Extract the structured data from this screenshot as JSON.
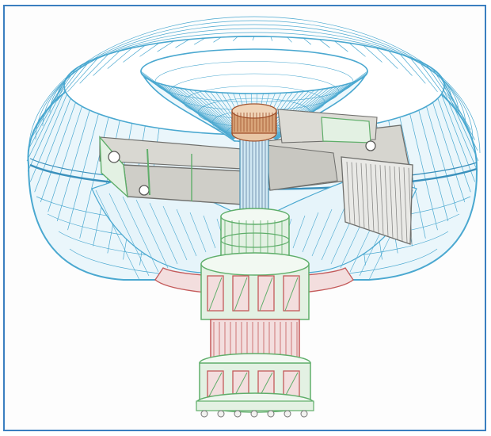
{
  "figure": {
    "frame_color": "#3a7fc0",
    "palette": {
      "torus_mesh": "#4aa8d0",
      "torus_mesh_light": "#9fd3e8",
      "green_parts": "#5fae6a",
      "green_fill": "#e3f1e3",
      "red_parts": "#c45a5a",
      "red_fill": "#f3dede",
      "gray_metal": "#8a8a88",
      "gray_fill": "#d9d8d2",
      "bronze": "#a0522d",
      "bronze_fill": "#d9a57a"
    },
    "icons": [
      "torus-mesh",
      "funnel-mesh",
      "crossbar-arms",
      "central-shaft",
      "stacked-rotor-column",
      "end-plate",
      "radiator-fins",
      "mounting-bolts"
    ]
  }
}
